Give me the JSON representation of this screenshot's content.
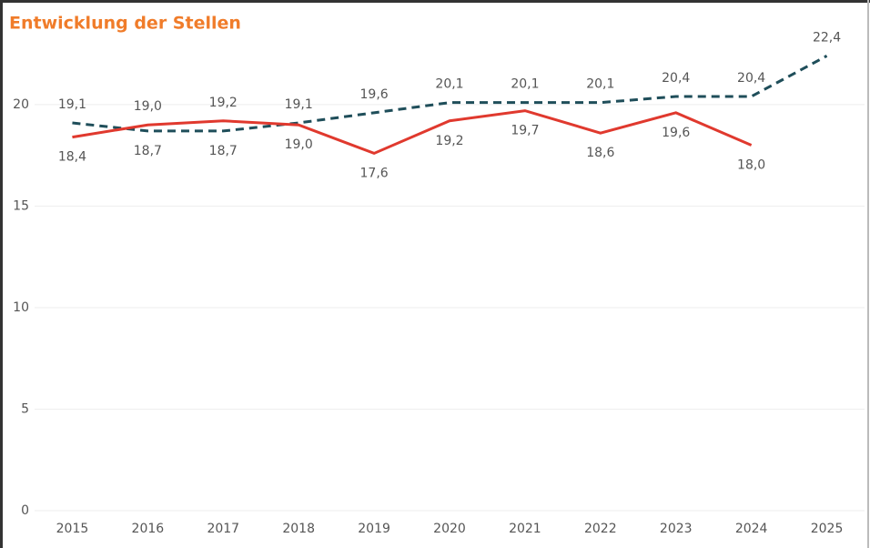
{
  "chart_data": {
    "type": "line",
    "title": "Entwicklung der Stellen",
    "categories": [
      "2015",
      "2016",
      "2017",
      "2018",
      "2019",
      "2020",
      "2021",
      "2022",
      "2023",
      "2024",
      "2025"
    ],
    "series": [
      {
        "color": "#1f4e5a",
        "dashed": true,
        "values": [
          19.1,
          18.7,
          18.7,
          19.1,
          19.6,
          20.1,
          20.1,
          20.1,
          20.4,
          20.4,
          22.4
        ],
        "value_labels": [
          "19,1",
          "18,7",
          "18,7",
          "19,1",
          "19,6",
          "20,1",
          "20,1",
          "20,1",
          "20,4",
          "20,4",
          "22,4"
        ]
      },
      {
        "color": "#e0392e",
        "dashed": false,
        "values": [
          18.4,
          19.0,
          19.2,
          19.0,
          17.6,
          19.2,
          19.7,
          18.6,
          19.6,
          18.0,
          null
        ],
        "value_labels": [
          "18,4",
          "19,0",
          "19,2",
          "19,0",
          "17,6",
          "19,2",
          "19,7",
          "18,6",
          "19,6",
          "18,0",
          null
        ]
      }
    ],
    "ylim": [
      0,
      23
    ],
    "yticks": [
      0,
      5,
      10,
      15,
      20
    ],
    "grid": true
  }
}
